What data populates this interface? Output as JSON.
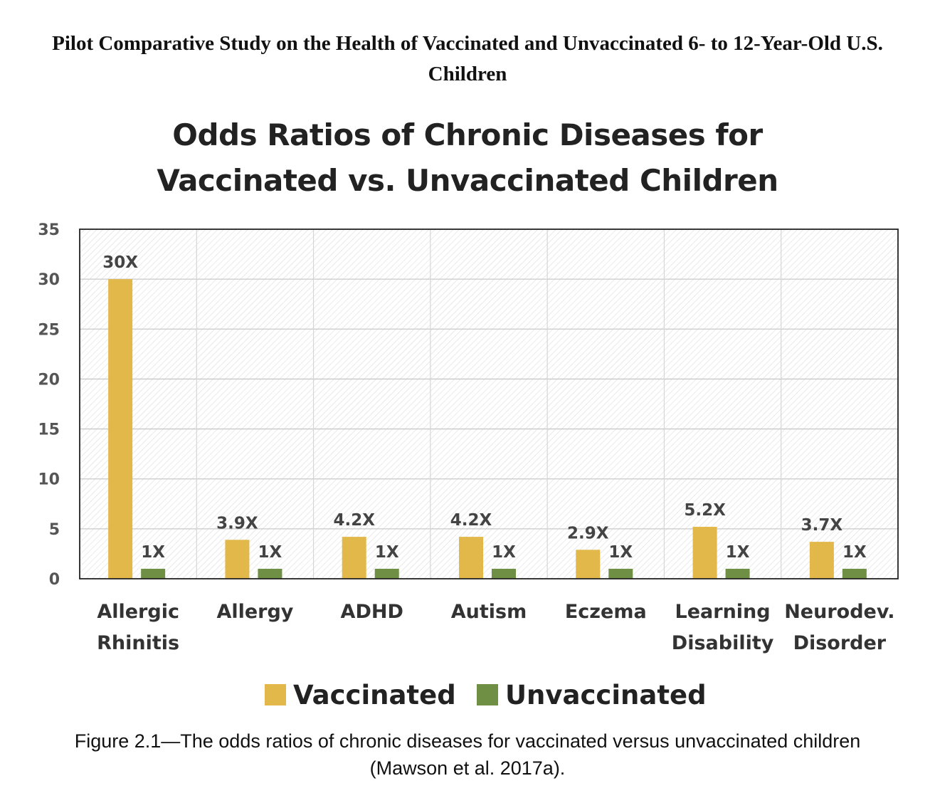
{
  "page": {
    "title": "Pilot Comparative Study on the Health of Vaccinated and Unvaccinated 6- to 12-Year-Old U.S. Children",
    "caption": "Figure 2.1—The odds ratios of chronic diseases for vaccinated versus unvaccinated children (Mawson et al. 2017a)."
  },
  "chart_data": {
    "type": "bar",
    "title_lines": [
      "Odds Ratios of Chronic Diseases for",
      "Vaccinated vs. Unvaccinated Children"
    ],
    "categories": [
      [
        "Allergic",
        "Rhinitis"
      ],
      [
        "Allergy"
      ],
      [
        "ADHD"
      ],
      [
        "Autism"
      ],
      [
        "Eczema"
      ],
      [
        "Learning",
        "Disability"
      ],
      [
        "Neurodev.",
        "Disorder"
      ]
    ],
    "series": [
      {
        "name": "Vaccinated",
        "color": "#e2b84a",
        "values": [
          30,
          3.9,
          4.2,
          4.2,
          2.9,
          5.2,
          3.7
        ],
        "labels": [
          "30X",
          "3.9X",
          "4.2X",
          "4.2X",
          "2.9X",
          "5.2X",
          "3.7X"
        ]
      },
      {
        "name": "Unvaccinated",
        "color": "#6f8f45",
        "values": [
          1,
          1,
          1,
          1,
          1,
          1,
          1
        ],
        "labels": [
          "1X",
          "1X",
          "1X",
          "1X",
          "1X",
          "1X",
          "1X"
        ]
      }
    ],
    "ylim": [
      0,
      35
    ],
    "yticks": [
      "0",
      "5",
      "10",
      "15",
      "20",
      "25",
      "30",
      "35"
    ],
    "grid": true,
    "legend_position": "bottom"
  }
}
